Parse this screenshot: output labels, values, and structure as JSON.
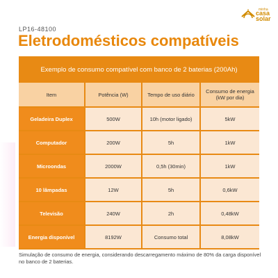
{
  "header": {
    "code": "LP16-48100",
    "title": "Eletrodomésticos compatíveis"
  },
  "logo": {
    "minha": "minha",
    "casa": "casa",
    "solar": "solar"
  },
  "table": {
    "caption": "Exemplo de consumo compatível com banco de 2 baterias (200Ah)",
    "columns": [
      "Item",
      "Potência (W)",
      "Tempo de uso diário",
      "Consumo de energia (kW por dia)"
    ],
    "rows": [
      [
        "Geladeira Duplex",
        "500W",
        "10h (motor ligado)",
        "5kW"
      ],
      [
        "Computador",
        "200W",
        "5h",
        "1kW"
      ],
      [
        "Microondas",
        "2000W",
        "0,5h (30min)",
        "1kW"
      ],
      [
        "10 lâmpadas",
        "12W",
        "5h",
        "0,6kW"
      ],
      [
        "Televisão",
        "240W",
        "2h",
        "0,48kW"
      ],
      [
        "Energia disponível",
        "8192W",
        "Consumo total",
        "8,08kW"
      ]
    ]
  },
  "footnote": "Simulação de consumo de energia, considerando descarregamento máximo de 80% da carga disponível no banco de 2 baterias.",
  "colors": {
    "accent": "#e8870b",
    "table_frame": "#e88a14",
    "header_cell": "#f9d2a3",
    "value_cell": "#fbe7d3"
  }
}
